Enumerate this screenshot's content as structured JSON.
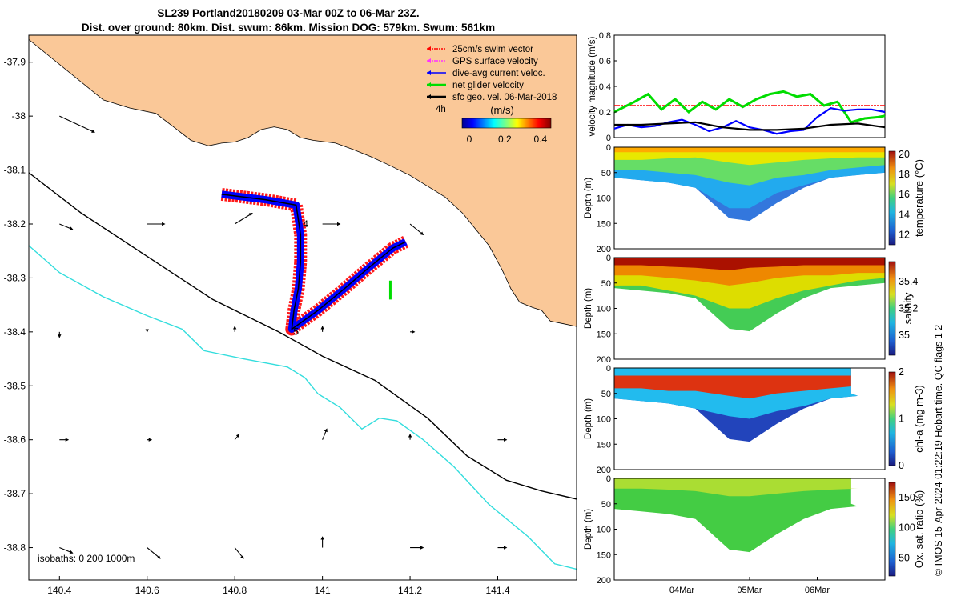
{
  "title_line1": "SL239 Portland20180209 03-Mar 00Z to 06-Mar 23Z.",
  "title_line2": "Dist. over ground: 80km. Dist. swum: 86km. Mission DOG: 579km. Swum: 561km",
  "credit": "© IMOS 15-Apr-2024 01:22:19 Hobart time. QC flags 1  2",
  "colors": {
    "land": "#FAC898",
    "isobath_200": "#000000",
    "isobath_1000": "#33DDDD",
    "swim": "#FF0000",
    "gps": "#FF33FF",
    "dive": "#0000FF",
    "net": "#00DD00",
    "sfc": "#000000"
  },
  "chart_data": [
    {
      "type": "scatter",
      "id": "map",
      "xlim": [
        140.33,
        141.58
      ],
      "ylim": [
        -38.86,
        -37.85
      ],
      "xticks": [
        "140.4",
        "140.6",
        "140.8",
        "141",
        "141.2",
        "141.4"
      ],
      "xtick_values": [
        140.4,
        140.6,
        140.8,
        141.0,
        141.2,
        141.4
      ],
      "yticks": [
        "-37.9",
        "-38",
        "-38.1",
        "-38.2",
        "-38.3",
        "-38.4",
        "-38.5",
        "-38.6",
        "-38.7",
        "-38.8"
      ],
      "ytick_values": [
        -37.9,
        -38.0,
        -38.1,
        -38.2,
        -38.3,
        -38.4,
        -38.5,
        -38.6,
        -38.7,
        -38.8
      ],
      "legend": [
        "25cm/s swim vector",
        "GPS surface velocity",
        "dive-avg current veloc.",
        "net glider velocity",
        "sfc geo. vel. 06-Mar-2018"
      ],
      "colorbar": {
        "label": "(m/s)",
        "ticks": [
          "0",
          "0.2",
          "0.4"
        ],
        "tick_values": [
          0,
          0.2,
          0.4
        ],
        "range": [
          0,
          0.5
        ],
        "prefix_label": "4h"
      },
      "isobath_label": "isobaths: 0   200  1000m",
      "track_labels": [
        "4",
        "5"
      ],
      "coast": [
        [
          140.33,
          -37.85
        ],
        [
          140.33,
          -37.858
        ],
        [
          140.5,
          -37.97
        ],
        [
          140.56,
          -37.985
        ],
        [
          140.62,
          -37.995
        ],
        [
          140.66,
          -38.02
        ],
        [
          140.7,
          -38.045
        ],
        [
          140.74,
          -38.055
        ],
        [
          140.77,
          -38.05
        ],
        [
          140.8,
          -38.048
        ],
        [
          140.83,
          -38.04
        ],
        [
          140.86,
          -38.025
        ],
        [
          140.89,
          -38.02
        ],
        [
          140.92,
          -38.025
        ],
        [
          140.95,
          -38.04
        ],
        [
          140.98,
          -38.045
        ],
        [
          141.03,
          -38.05
        ],
        [
          141.07,
          -38.062
        ],
        [
          141.11,
          -38.075
        ],
        [
          141.15,
          -38.09
        ],
        [
          141.2,
          -38.11
        ],
        [
          141.24,
          -38.13
        ],
        [
          141.28,
          -38.15
        ],
        [
          141.32,
          -38.18
        ],
        [
          141.35,
          -38.21
        ],
        [
          141.38,
          -38.24
        ],
        [
          141.41,
          -38.285
        ],
        [
          141.43,
          -38.32
        ],
        [
          141.45,
          -38.345
        ],
        [
          141.48,
          -38.355
        ],
        [
          141.5,
          -38.36
        ],
        [
          141.52,
          -38.38
        ],
        [
          141.55,
          -38.385
        ],
        [
          141.58,
          -38.39
        ],
        [
          141.58,
          -37.85
        ]
      ],
      "isobath_200m": [
        [
          140.33,
          -38.105
        ],
        [
          140.45,
          -38.18
        ],
        [
          140.6,
          -38.26
        ],
        [
          140.75,
          -38.34
        ],
        [
          140.9,
          -38.4
        ],
        [
          141.0,
          -38.445
        ],
        [
          141.12,
          -38.49
        ],
        [
          141.24,
          -38.56
        ],
        [
          141.33,
          -38.63
        ],
        [
          141.42,
          -38.675
        ],
        [
          141.5,
          -38.695
        ],
        [
          141.58,
          -38.71
        ]
      ],
      "isobath_1000m": [
        [
          140.33,
          -38.24
        ],
        [
          140.4,
          -38.29
        ],
        [
          140.5,
          -38.335
        ],
        [
          140.6,
          -38.37
        ],
        [
          140.68,
          -38.395
        ],
        [
          140.73,
          -38.435
        ],
        [
          140.82,
          -38.45
        ],
        [
          140.92,
          -38.465
        ],
        [
          140.96,
          -38.485
        ],
        [
          140.99,
          -38.515
        ],
        [
          141.04,
          -38.54
        ],
        [
          141.09,
          -38.58
        ],
        [
          141.13,
          -38.56
        ],
        [
          141.17,
          -38.565
        ],
        [
          141.23,
          -38.6
        ],
        [
          141.3,
          -38.65
        ],
        [
          141.38,
          -38.72
        ],
        [
          141.47,
          -38.78
        ],
        [
          141.53,
          -38.83
        ],
        [
          141.58,
          -38.84
        ]
      ],
      "glider_track": [
        [
          140.77,
          -38.145
        ],
        [
          140.87,
          -38.155
        ],
        [
          140.94,
          -38.165
        ],
        [
          140.95,
          -38.22
        ],
        [
          140.95,
          -38.27
        ],
        [
          140.945,
          -38.32
        ],
        [
          140.935,
          -38.36
        ],
        [
          140.93,
          -38.395
        ],
        [
          140.99,
          -38.36
        ],
        [
          141.05,
          -38.32
        ],
        [
          141.1,
          -38.285
        ],
        [
          141.16,
          -38.245
        ],
        [
          141.19,
          -38.233
        ]
      ],
      "arrows": [
        [
          140.4,
          -38.0,
          0.08,
          -0.03
        ],
        [
          140.4,
          -38.2,
          0.03,
          -0.01
        ],
        [
          140.6,
          -38.2,
          0.04,
          0.0
        ],
        [
          140.8,
          -38.2,
          0.04,
          0.02
        ],
        [
          141.0,
          -38.2,
          0.04,
          0.0
        ],
        [
          141.2,
          -38.2,
          0.03,
          -0.02
        ],
        [
          140.4,
          -38.4,
          0.0,
          -0.01
        ],
        [
          140.6,
          -38.4,
          0.0,
          0.0
        ],
        [
          140.8,
          -38.4,
          0.0,
          0.01
        ],
        [
          141.0,
          -38.4,
          0.0,
          0.01
        ],
        [
          141.2,
          -38.4,
          0.01,
          0.0
        ],
        [
          140.4,
          -38.6,
          0.02,
          0.0
        ],
        [
          140.6,
          -38.6,
          0.01,
          0.0
        ],
        [
          140.8,
          -38.6,
          0.01,
          0.01
        ],
        [
          141.0,
          -38.6,
          0.01,
          0.02
        ],
        [
          141.2,
          -38.6,
          0.0,
          0.01
        ],
        [
          141.4,
          -38.6,
          0.02,
          0.0
        ],
        [
          140.4,
          -38.8,
          0.03,
          -0.01
        ],
        [
          140.6,
          -38.8,
          0.03,
          -0.02
        ],
        [
          140.8,
          -38.8,
          0.02,
          -0.02
        ],
        [
          141.0,
          -38.8,
          0.0,
          0.02
        ],
        [
          141.2,
          -38.8,
          0.03,
          0.0
        ],
        [
          141.4,
          -38.8,
          0.02,
          0.0
        ]
      ]
    },
    {
      "type": "line",
      "id": "velocity",
      "ylabel": "velocity magnitude (m/s)",
      "ylim": [
        0,
        0.8
      ],
      "yticks": [
        "0",
        "0.2",
        "0.4",
        "0.6",
        "0.8"
      ],
      "ytick_values": [
        0,
        0.2,
        0.4,
        0.6,
        0.8
      ],
      "xlim": [
        0,
        4
      ],
      "series": [
        {
          "color": "#FF0000",
          "x": [
            0,
            4
          ],
          "values": [
            0.25,
            0.25
          ]
        },
        {
          "color": "#00DD00",
          "x": [
            0,
            0.3,
            0.5,
            0.7,
            0.9,
            1.1,
            1.3,
            1.5,
            1.7,
            1.9,
            2.1,
            2.3,
            2.5,
            2.7,
            2.9,
            3.1,
            3.3,
            3.5,
            3.7,
            3.9,
            4.0
          ],
          "values": [
            0.2,
            0.28,
            0.34,
            0.22,
            0.3,
            0.2,
            0.28,
            0.22,
            0.3,
            0.24,
            0.3,
            0.34,
            0.36,
            0.32,
            0.34,
            0.25,
            0.28,
            0.12,
            0.15,
            0.16,
            0.17
          ]
        },
        {
          "color": "#0000FF",
          "x": [
            0,
            0.2,
            0.4,
            0.6,
            0.8,
            1.0,
            1.2,
            1.4,
            1.6,
            1.8,
            2.0,
            2.2,
            2.4,
            2.6,
            2.8,
            3.0,
            3.2,
            3.4,
            3.6,
            3.8,
            4.0
          ],
          "values": [
            0.07,
            0.1,
            0.08,
            0.09,
            0.12,
            0.14,
            0.1,
            0.05,
            0.08,
            0.13,
            0.08,
            0.06,
            0.03,
            0.05,
            0.06,
            0.16,
            0.23,
            0.21,
            0.22,
            0.22,
            0.2
          ]
        },
        {
          "color": "#000000",
          "x": [
            0,
            0.4,
            0.8,
            1.2,
            1.6,
            2.0,
            2.4,
            2.8,
            3.2,
            3.6,
            4.0
          ],
          "values": [
            0.1,
            0.1,
            0.11,
            0.12,
            0.08,
            0.06,
            0.06,
            0.07,
            0.1,
            0.11,
            0.08
          ]
        }
      ]
    },
    {
      "type": "area",
      "id": "temperature",
      "ylabel": "Depth (m)",
      "cbar_label": "temperature (°C)",
      "ylim": [
        200,
        0
      ],
      "yticks": [
        "0",
        "50",
        "100",
        "150",
        "200"
      ],
      "ytick_values": [
        0,
        50,
        100,
        150,
        200
      ],
      "cbar_ticks": [
        "12",
        "14",
        "16",
        "18",
        "20"
      ],
      "cbar_range": [
        11,
        20.3
      ],
      "sections": [
        {
          "color": "#FFAA00",
          "values": [
            10,
            10,
            10,
            10,
            10,
            10,
            10,
            10,
            10,
            10,
            10
          ]
        },
        {
          "color": "#E8E800",
          "values": [
            25,
            25,
            22,
            20,
            30,
            35,
            30,
            25,
            22,
            20,
            20
          ]
        },
        {
          "color": "#66DD66",
          "values": [
            45,
            45,
            50,
            55,
            70,
            75,
            60,
            55,
            45,
            40,
            35
          ]
        },
        {
          "color": "#22AAEE",
          "values": [
            60,
            65,
            70,
            80,
            120,
            120,
            90,
            75,
            60,
            55,
            50
          ]
        },
        {
          "color": "#3377DD",
          "values": [
            60,
            65,
            70,
            80,
            140,
            145,
            110,
            80,
            60,
            55,
            50
          ]
        }
      ],
      "x": [
        0,
        0.4,
        0.8,
        1.2,
        1.7,
        2.0,
        2.4,
        2.8,
        3.2,
        3.6,
        4.0
      ]
    },
    {
      "type": "area",
      "id": "salinity",
      "ylabel": "Depth (m)",
      "cbar_label": "salinity",
      "ylim": [
        200,
        0
      ],
      "yticks": [
        "0",
        "50",
        "100",
        "150",
        "200"
      ],
      "ytick_values": [
        0,
        50,
        100,
        150,
        200
      ],
      "cbar_ticks": [
        "35",
        "35.2",
        "35.4"
      ],
      "cbar_range": [
        34.85,
        35.55
      ],
      "sections": [
        {
          "color": "#AA1100",
          "values": [
            15,
            15,
            18,
            20,
            25,
            20,
            18,
            15,
            15,
            15,
            15
          ]
        },
        {
          "color": "#EE8800",
          "values": [
            35,
            35,
            40,
            45,
            55,
            50,
            40,
            35,
            35,
            30,
            30
          ]
        },
        {
          "color": "#DDDD00",
          "values": [
            55,
            55,
            65,
            75,
            100,
            100,
            80,
            65,
            55,
            45,
            40
          ]
        },
        {
          "color": "#44CC55",
          "values": [
            60,
            65,
            70,
            80,
            140,
            145,
            110,
            80,
            60,
            55,
            50
          ]
        }
      ],
      "x": [
        0,
        0.4,
        0.8,
        1.2,
        1.7,
        2.0,
        2.4,
        2.8,
        3.2,
        3.6,
        4.0
      ]
    },
    {
      "type": "area",
      "id": "chla",
      "ylabel": "Depth (m)",
      "cbar_label": "chl-a (mg m-3)",
      "ylim": [
        200,
        0
      ],
      "yticks": [
        "0",
        "50",
        "100",
        "150",
        "200"
      ],
      "ytick_values": [
        0,
        50,
        100,
        150,
        200
      ],
      "cbar_ticks": [
        "0",
        "1",
        "2"
      ],
      "cbar_range": [
        0,
        2
      ],
      "sections": [
        {
          "color": "#22BBEE",
          "values": [
            15,
            15,
            15,
            15,
            15,
            15,
            15,
            15,
            15,
            15,
            15
          ]
        },
        {
          "color": "#DD3311",
          "values": [
            40,
            40,
            45,
            45,
            55,
            60,
            50,
            45,
            40,
            35,
            35
          ]
        },
        {
          "color": "#22BBEE",
          "values": [
            60,
            65,
            70,
            80,
            95,
            100,
            85,
            75,
            60,
            55,
            50
          ]
        },
        {
          "color": "#2244BB",
          "values": [
            60,
            65,
            70,
            80,
            140,
            145,
            110,
            80,
            60,
            55,
            50
          ]
        }
      ],
      "x": [
        0,
        0.4,
        0.8,
        1.2,
        1.7,
        2.0,
        2.4,
        2.8,
        3.2,
        3.6,
        3.5
      ]
    },
    {
      "type": "area",
      "id": "oxygen",
      "ylabel": "Depth (m)",
      "cbar_label": "Ox. sat. ratio (%)",
      "ylim": [
        200,
        0
      ],
      "yticks": [
        "0",
        "50",
        "100",
        "150",
        "200"
      ],
      "ytick_values": [
        0,
        50,
        100,
        150,
        200
      ],
      "cbar_ticks": [
        "50",
        "100",
        "150"
      ],
      "cbar_range": [
        20,
        175
      ],
      "xticks": [
        "04Mar",
        "05Mar",
        "06Mar"
      ],
      "xtick_values": [
        1,
        2,
        3
      ],
      "sections": [
        {
          "color": "#AADD33",
          "values": [
            20,
            20,
            22,
            25,
            35,
            35,
            30,
            25,
            22,
            20,
            20
          ]
        },
        {
          "color": "#44CC44",
          "values": [
            60,
            65,
            70,
            80,
            140,
            145,
            110,
            80,
            60,
            55,
            50
          ]
        }
      ],
      "x": [
        0,
        0.4,
        0.8,
        1.2,
        1.7,
        2.0,
        2.4,
        2.8,
        3.2,
        3.6,
        3.5
      ]
    }
  ]
}
